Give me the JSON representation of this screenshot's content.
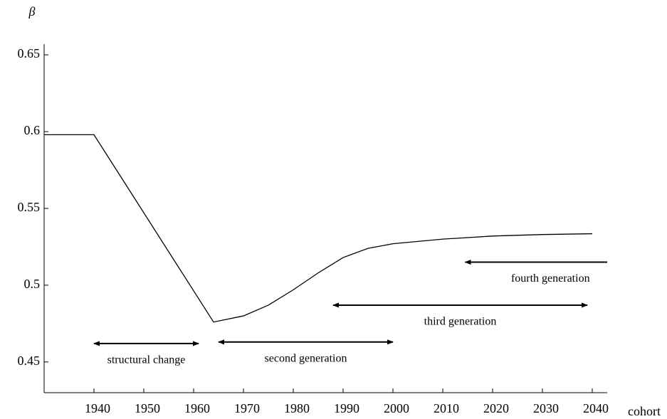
{
  "chart_data": {
    "type": "line",
    "y_label": "β",
    "x_label": "cohort",
    "x": [
      1930,
      1940,
      1964,
      1970,
      1975,
      1980,
      1985,
      1990,
      1995,
      2000,
      2010,
      2020,
      2030,
      2040
    ],
    "values": [
      0.598,
      0.598,
      0.476,
      0.48,
      0.487,
      0.497,
      0.508,
      0.518,
      0.524,
      0.527,
      0.53,
      0.532,
      0.533,
      0.5335
    ],
    "color": "#000000",
    "xlim": [
      1930,
      2043
    ],
    "ylim": [
      0.43,
      0.657
    ],
    "xticks": [
      1940,
      1950,
      1960,
      1970,
      1980,
      1990,
      2000,
      2010,
      2020,
      2030,
      2040
    ],
    "yticks": [
      0.45,
      0.5,
      0.55,
      0.6,
      0.65
    ],
    "grid": false,
    "annotations": [
      {
        "text": "structural change",
        "x": [
          1940,
          1961
        ],
        "y": 0.462,
        "heads": "both"
      },
      {
        "text": "second generation",
        "x": [
          1965,
          2000
        ],
        "y": 0.463,
        "heads": "both"
      },
      {
        "text": "third generation",
        "x": [
          1988,
          2039
        ],
        "y": 0.487,
        "heads": "both"
      },
      {
        "text": "fourth generation",
        "x": [
          2043,
          2014.5
        ],
        "y": 0.515,
        "heads": "end"
      }
    ]
  }
}
